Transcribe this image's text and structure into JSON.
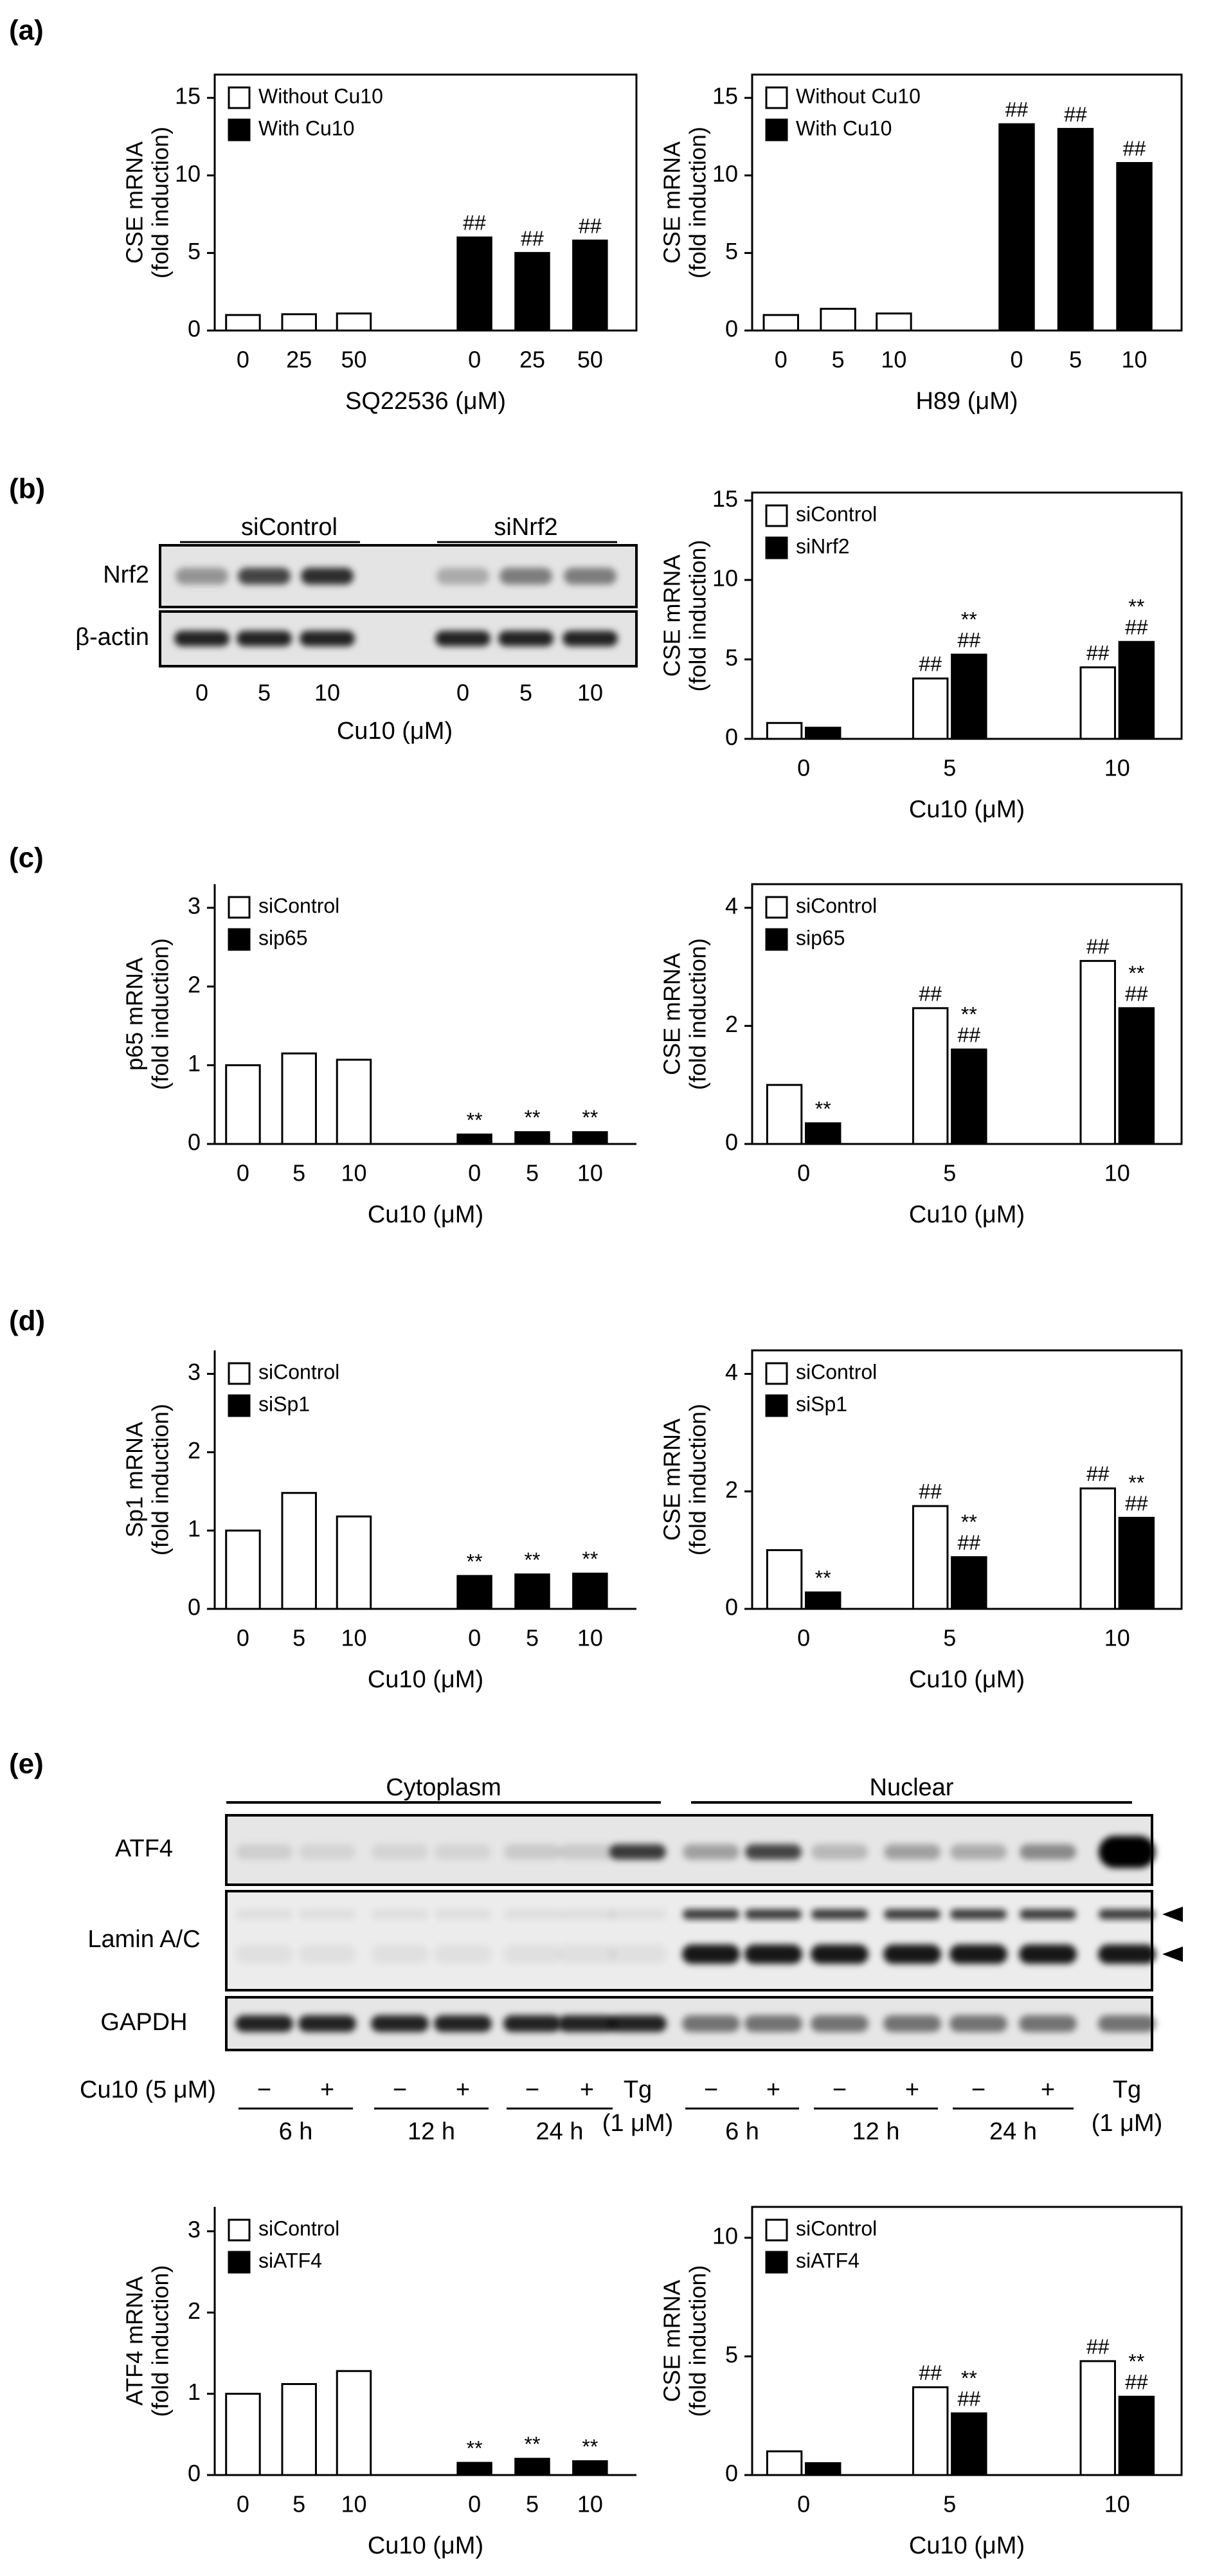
{
  "panel_labels": [
    "(a)",
    "(b)",
    "(c)",
    "(d)",
    "(e)"
  ],
  "chart_data": [
    {
      "type": "bar",
      "ylabel": [
        "CSE mRNA",
        "(fold induction)"
      ],
      "xlabel": "SQ22536 (μM)",
      "categories": [
        "0",
        "25",
        "50",
        "0",
        "25",
        "50"
      ],
      "ylim": [
        0,
        16.5
      ],
      "yticks": [
        0,
        5,
        10,
        15
      ],
      "series": [
        {
          "name": "Without Cu10",
          "color": "#ffffff",
          "values": [
            1,
            1.05,
            1.1,
            null,
            null,
            null
          ],
          "labels": [
            null,
            null,
            null,
            null,
            null,
            null
          ]
        },
        {
          "name": "With Cu10",
          "color": "#000000",
          "values": [
            null,
            null,
            null,
            6,
            5,
            5.8
          ],
          "labels": [
            null,
            null,
            null,
            [
              "##"
            ],
            [
              "##"
            ],
            [
              "##"
            ]
          ]
        }
      ]
    },
    {
      "type": "bar",
      "ylabel": [
        "CSE mRNA",
        "(fold induction)"
      ],
      "xlabel": "H89 (μM)",
      "categories": [
        "0",
        "5",
        "10",
        "0",
        "5",
        "10"
      ],
      "ylim": [
        0,
        16.5
      ],
      "yticks": [
        0,
        5,
        10,
        15
      ],
      "series": [
        {
          "name": "Without Cu10",
          "color": "#ffffff",
          "values": [
            1,
            1.4,
            1.1,
            null,
            null,
            null
          ],
          "labels": [
            null,
            null,
            null,
            null,
            null,
            null
          ]
        },
        {
          "name": "With Cu10",
          "color": "#000000",
          "values": [
            null,
            null,
            null,
            13.3,
            13,
            10.8
          ],
          "labels": [
            null,
            null,
            null,
            [
              "##"
            ],
            [
              "##"
            ],
            [
              "##"
            ]
          ]
        }
      ]
    },
    {
      "type": "bar",
      "ylabel": [
        "CSE mRNA",
        "(fold induction)"
      ],
      "xlabel": "Cu10 (μM)",
      "categories": [
        "0",
        "5",
        "10"
      ],
      "ylim": [
        0,
        15.5
      ],
      "yticks": [
        0,
        5,
        10,
        15
      ],
      "series": [
        {
          "name": "siControl",
          "color": "#ffffff",
          "values": [
            1,
            3.8,
            4.5
          ],
          "labels": [
            null,
            [
              "##"
            ],
            [
              "##"
            ]
          ]
        },
        {
          "name": "siNrf2",
          "color": "#000000",
          "values": [
            0.7,
            5.3,
            6.1
          ],
          "labels": [
            null,
            [
              "**",
              "##"
            ],
            [
              "**",
              "##"
            ]
          ]
        }
      ]
    },
    {
      "type": "bar",
      "ylabel": [
        "p65 mRNA",
        "(fold induction)"
      ],
      "xlabel": "Cu10 (μM)",
      "categories": [
        "0",
        "5",
        "10",
        "0",
        "5",
        "10"
      ],
      "ylim": [
        0,
        3.3
      ],
      "yticks": [
        0,
        1,
        2,
        3
      ],
      "series": [
        {
          "name": "siControl",
          "color": "#ffffff",
          "values": [
            1,
            1.15,
            1.07,
            null,
            null,
            null
          ],
          "labels": [
            null,
            null,
            null,
            null,
            null,
            null
          ]
        },
        {
          "name": "sip65",
          "color": "#000000",
          "values": [
            null,
            null,
            null,
            0.12,
            0.15,
            0.15
          ],
          "labels": [
            null,
            null,
            null,
            [
              "**"
            ],
            [
              "**"
            ],
            [
              "**"
            ]
          ]
        }
      ]
    },
    {
      "type": "bar",
      "ylabel": [
        "CSE mRNA",
        "(fold induction)"
      ],
      "xlabel": "Cu10 (μM)",
      "categories": [
        "0",
        "5",
        "10"
      ],
      "ylim": [
        0,
        4.4
      ],
      "yticks": [
        0,
        2,
        4
      ],
      "series": [
        {
          "name": "siControl",
          "color": "#ffffff",
          "values": [
            1,
            2.3,
            3.1
          ],
          "labels": [
            null,
            [
              "##"
            ],
            [
              "##"
            ]
          ]
        },
        {
          "name": "sip65",
          "color": "#000000",
          "values": [
            0.35,
            1.6,
            2.3
          ],
          "labels": [
            [
              "**"
            ],
            [
              "**",
              "##"
            ],
            [
              "**",
              "##"
            ]
          ]
        }
      ]
    },
    {
      "type": "bar",
      "ylabel": [
        "Sp1 mRNA",
        "(fold induction)"
      ],
      "xlabel": "Cu10 (μM)",
      "categories": [
        "0",
        "5",
        "10",
        "0",
        "5",
        "10"
      ],
      "ylim": [
        0,
        3.3
      ],
      "yticks": [
        0,
        1,
        2,
        3
      ],
      "series": [
        {
          "name": "siControl",
          "color": "#ffffff",
          "values": [
            1,
            1.48,
            1.18,
            null,
            null,
            null
          ],
          "labels": [
            null,
            null,
            null,
            null,
            null,
            null
          ]
        },
        {
          "name": "siSp1",
          "color": "#000000",
          "values": [
            null,
            null,
            null,
            0.42,
            0.44,
            0.45
          ],
          "labels": [
            null,
            null,
            null,
            [
              "**"
            ],
            [
              "**"
            ],
            [
              "**"
            ]
          ]
        }
      ]
    },
    {
      "type": "bar",
      "ylabel": [
        "CSE mRNA",
        "(fold induction)"
      ],
      "xlabel": "Cu10 (μM)",
      "categories": [
        "0",
        "5",
        "10"
      ],
      "ylim": [
        0,
        4.4
      ],
      "yticks": [
        0,
        2,
        4
      ],
      "series": [
        {
          "name": "siControl",
          "color": "#ffffff",
          "values": [
            1,
            1.75,
            2.05
          ],
          "labels": [
            null,
            [
              "##"
            ],
            [
              "##"
            ]
          ]
        },
        {
          "name": "siSp1",
          "color": "#000000",
          "values": [
            0.28,
            0.88,
            1.55
          ],
          "labels": [
            [
              "**"
            ],
            [
              "**",
              "##"
            ],
            [
              "**",
              "##"
            ]
          ]
        }
      ]
    },
    {
      "type": "bar",
      "ylabel": [
        "ATF4 mRNA",
        "(fold induction)"
      ],
      "xlabel": "Cu10 (μM)",
      "categories": [
        "0",
        "5",
        "10",
        "0",
        "5",
        "10"
      ],
      "ylim": [
        0,
        3.3
      ],
      "yticks": [
        0,
        1,
        2,
        3
      ],
      "series": [
        {
          "name": "siControl",
          "color": "#ffffff",
          "values": [
            1,
            1.12,
            1.28,
            null,
            null,
            null
          ],
          "labels": [
            null,
            null,
            null,
            null,
            null,
            null
          ]
        },
        {
          "name": "siATF4",
          "color": "#000000",
          "values": [
            null,
            null,
            null,
            0.15,
            0.2,
            0.17
          ],
          "labels": [
            null,
            null,
            null,
            [
              "**"
            ],
            [
              "**"
            ],
            [
              "**"
            ]
          ]
        }
      ]
    },
    {
      "type": "bar",
      "ylabel": [
        "CSE mRNA",
        "(fold induction)"
      ],
      "xlabel": "Cu10 (μM)",
      "categories": [
        "0",
        "5",
        "10"
      ],
      "ylim": [
        0,
        11.3
      ],
      "yticks": [
        0,
        5,
        10
      ],
      "series": [
        {
          "name": "siControl",
          "color": "#ffffff",
          "values": [
            1,
            3.7,
            4.8
          ],
          "labels": [
            null,
            [
              "##"
            ],
            [
              "##"
            ]
          ]
        },
        {
          "name": "siATF4",
          "color": "#000000",
          "values": [
            0.5,
            2.6,
            3.3
          ],
          "labels": [
            null,
            [
              "**",
              "##"
            ],
            [
              "**",
              "##"
            ]
          ]
        }
      ]
    }
  ],
  "blots": [
    {
      "headers": [
        "siControl",
        "siNrf2"
      ],
      "rows": [
        "Nrf2",
        "β-actin"
      ],
      "lanes": [
        "0",
        "5",
        "10",
        "0",
        "5",
        "10"
      ],
      "xlabel": "Cu10 (μM)"
    },
    {
      "headers": [
        "Cytoplasm",
        "Nuclear"
      ],
      "rows": [
        "ATF4",
        "Lamin A/C",
        "GAPDH"
      ],
      "treatment": "Cu10 (5 μM)",
      "lanes": [
        "−",
        "+",
        "−",
        "+",
        "−",
        "+",
        "Tg",
        "−",
        "+",
        "−",
        "+",
        "−",
        "+",
        "Tg"
      ],
      "times": [
        "6 h",
        "12 h",
        "24 h",
        "6 h",
        "12 h",
        "24 h"
      ],
      "tg_dose": [
        "(1 μM)",
        "(1 μM)"
      ]
    }
  ]
}
